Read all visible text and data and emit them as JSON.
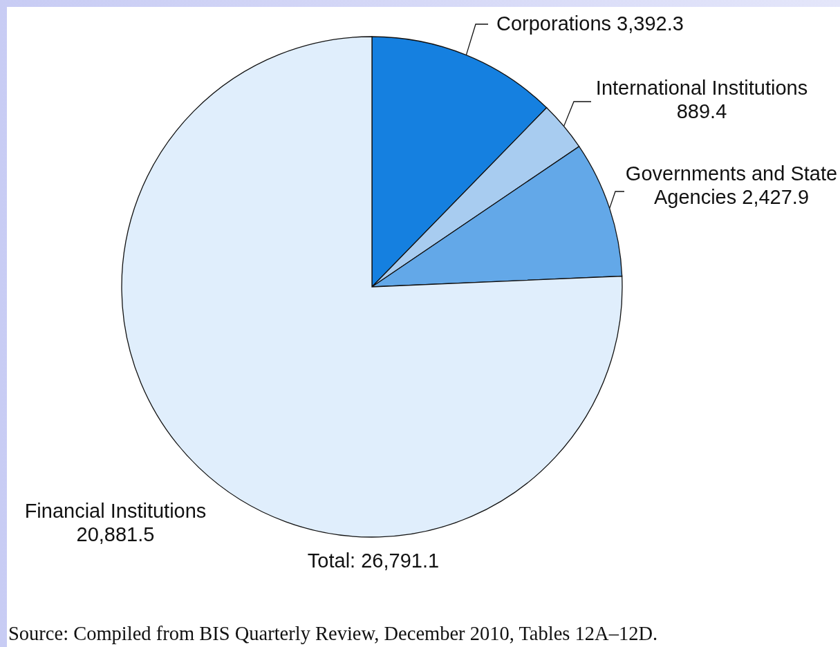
{
  "chart_data": {
    "type": "pie",
    "categories": [
      "Corporations",
      "International Institutions",
      "Governments and State Agencies",
      "Financial Institutions"
    ],
    "values": [
      3392.3,
      889.4,
      2427.9,
      20881.5
    ],
    "colors": [
      "#1580e0",
      "#a8ccf0",
      "#63a8e8",
      "#e0eefc"
    ],
    "value_labels": [
      "3,392.3",
      "889.4",
      "2,427.9",
      "20,881.5"
    ],
    "annotations": [
      "Total: 26,791.1",
      "Source: Compiled from BIS Quarterly Review, December 2010, Tables 12A–12D."
    ]
  }
}
